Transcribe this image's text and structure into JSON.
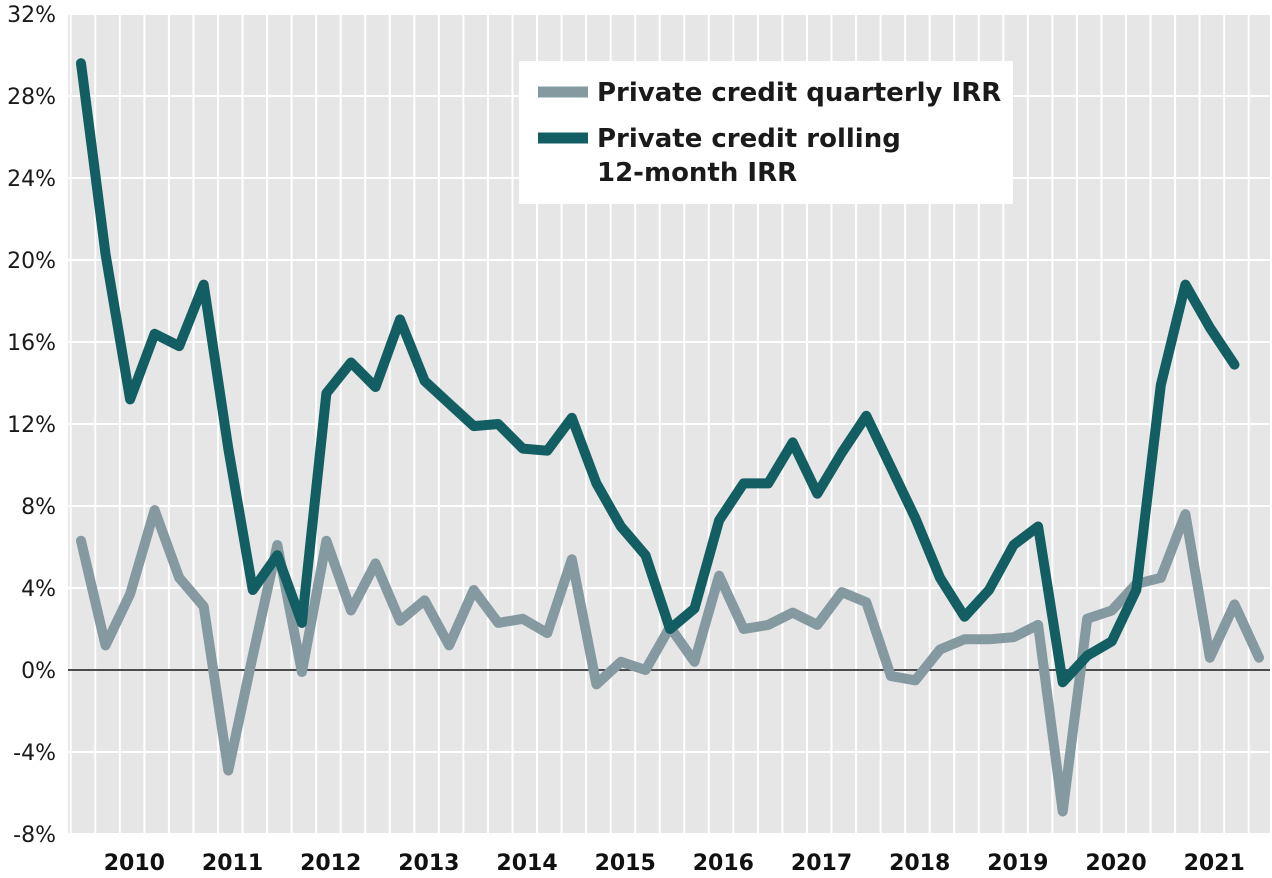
{
  "chart_data": {
    "type": "line",
    "title": "",
    "xlabel": "",
    "ylabel": "",
    "ylim": [
      -8,
      32
    ],
    "yticks": [
      -8,
      -4,
      0,
      4,
      8,
      12,
      16,
      20,
      24,
      28,
      32
    ],
    "ytick_labels": [
      "-8%",
      "-4%",
      "0%",
      "4%",
      "8%",
      "12%",
      "16%",
      "20%",
      "24%",
      "28%",
      "32%"
    ],
    "x": [
      "2009 Q4",
      "2010 Q1",
      "2010 Q2",
      "2010 Q3",
      "2010 Q4",
      "2011 Q1",
      "2011 Q2",
      "2011 Q3",
      "2011 Q4",
      "2012 Q1",
      "2012 Q2",
      "2012 Q3",
      "2012 Q4",
      "2013 Q1",
      "2013 Q2",
      "2013 Q3",
      "2013 Q4",
      "2014 Q1",
      "2014 Q2",
      "2014 Q3",
      "2014 Q4",
      "2015 Q1",
      "2015 Q2",
      "2015 Q3",
      "2015 Q4",
      "2016 Q1",
      "2016 Q2",
      "2016 Q3",
      "2016 Q4",
      "2017 Q1",
      "2017 Q2",
      "2017 Q3",
      "2017 Q4",
      "2018 Q1",
      "2018 Q2",
      "2018 Q3",
      "2018 Q4",
      "2019 Q1",
      "2019 Q2",
      "2019 Q3",
      "2019 Q4",
      "2020 Q1",
      "2020 Q2",
      "2020 Q3",
      "2020 Q4",
      "2021 Q1",
      "2021 Q2",
      "2021 Q3",
      "2021 Q4"
    ],
    "year_labels": [
      "2010",
      "2011",
      "2012",
      "2013",
      "2014",
      "2015",
      "2016",
      "2017",
      "2018",
      "2019",
      "2020",
      "2021"
    ],
    "grid": true,
    "legend_position": "top-right",
    "series": [
      {
        "name": "Private credit quarterly IRR",
        "color": "#8499a0",
        "values": [
          6.3,
          1.2,
          3.7,
          7.8,
          4.5,
          3.1,
          -4.9,
          0.7,
          6.1,
          -0.1,
          6.3,
          2.9,
          5.2,
          2.4,
          3.4,
          1.2,
          3.9,
          2.3,
          2.5,
          1.8,
          5.4,
          -0.7,
          0.4,
          0.0,
          2.1,
          0.4,
          4.6,
          2.0,
          2.2,
          2.8,
          2.2,
          3.8,
          3.3,
          -0.3,
          -0.5,
          1.0,
          1.5,
          1.5,
          1.6,
          2.2,
          -6.9,
          2.5,
          2.9,
          4.2,
          4.5,
          7.6,
          0.6,
          3.2,
          0.6
        ]
      },
      {
        "name": "Private credit rolling 12-month IRR",
        "color": "#135e63",
        "label_lines": [
          "Private credit rolling",
          "12-month IRR"
        ],
        "values": [
          29.6,
          20.3,
          13.2,
          16.4,
          15.8,
          18.8,
          10.8,
          3.9,
          5.6,
          2.3,
          13.5,
          15.0,
          13.8,
          17.1,
          14.1,
          13.0,
          11.9,
          12.0,
          10.8,
          10.7,
          12.3,
          9.1,
          7.0,
          5.6,
          2.0,
          3.0,
          7.3,
          9.1,
          9.1,
          11.1,
          8.6,
          10.6,
          12.4,
          9.9,
          7.4,
          4.5,
          2.6,
          3.9,
          6.1,
          7.0,
          -0.6,
          0.7,
          1.4,
          3.9,
          13.9,
          18.8,
          16.7,
          14.9,
          null
        ]
      }
    ]
  }
}
